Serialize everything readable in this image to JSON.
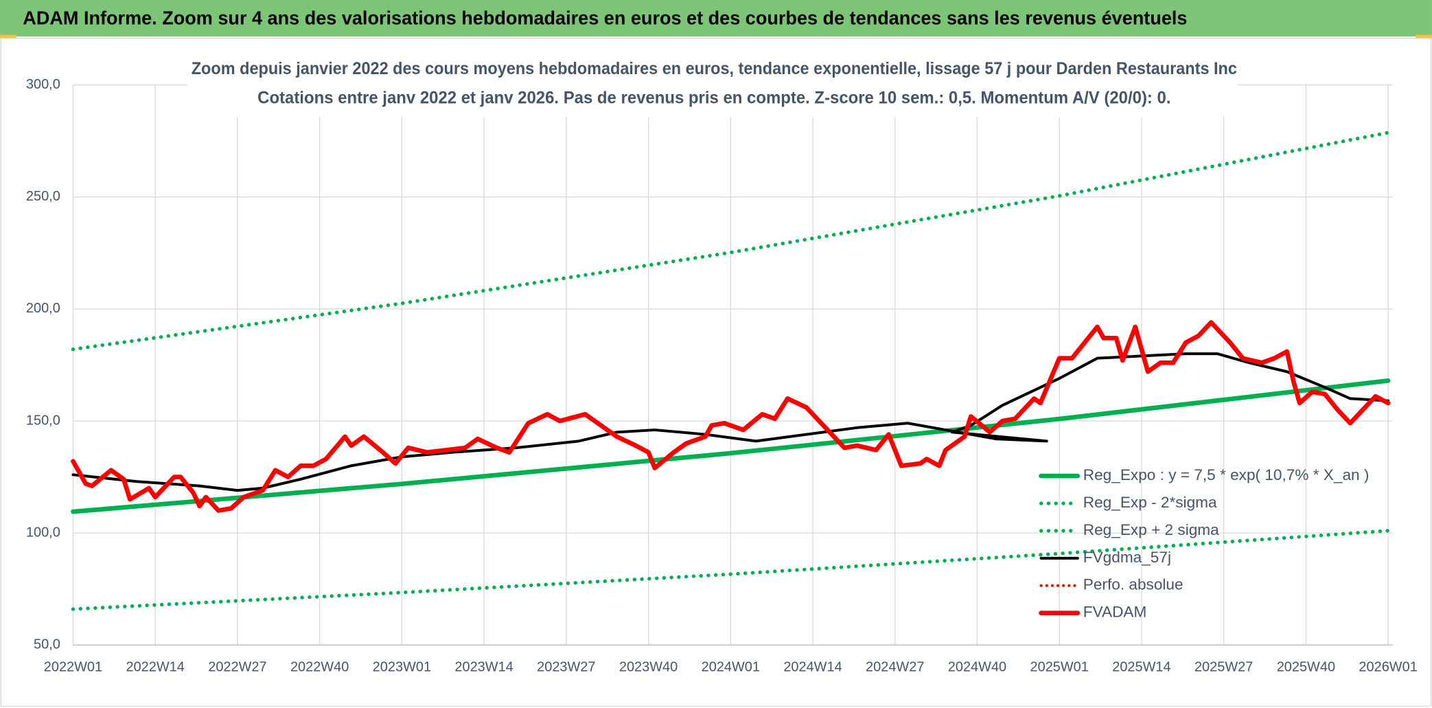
{
  "chart_data": {
    "type": "line",
    "header": "ADAM Informe. Zoom sur 4 ans des valorisations hebdomadaires en euros et des courbes de tendances sans les revenus éventuels",
    "title": "Zoom depuis janvier 2022 des cours moyens hebdomadaires en euros, tendance exponentielle, lissage 57 j pour Darden Restaurants Inc",
    "subtitle": "Cotations entre janv 2022 et janv 2026. Pas de revenus pris en compte. Z-score 10 sem.: 0,5. Momentum A/V (20/0): 0.",
    "xlim": [
      0,
      208
    ],
    "xticks": [
      {
        "value": 0,
        "label": "2022W01"
      },
      {
        "value": 13,
        "label": "2022W14"
      },
      {
        "value": 26,
        "label": "2022W27"
      },
      {
        "value": 39,
        "label": "2022W40"
      },
      {
        "value": 52,
        "label": "2023W01"
      },
      {
        "value": 65,
        "label": "2023W14"
      },
      {
        "value": 78,
        "label": "2023W27"
      },
      {
        "value": 91,
        "label": "2023W40"
      },
      {
        "value": 104,
        "label": "2024W01"
      },
      {
        "value": 117,
        "label": "2024W14"
      },
      {
        "value": 130,
        "label": "2024W27"
      },
      {
        "value": 143,
        "label": "2024W40"
      },
      {
        "value": 156,
        "label": "2025W01"
      },
      {
        "value": 169,
        "label": "2025W14"
      },
      {
        "value": 182,
        "label": "2025W27"
      },
      {
        "value": 195,
        "label": "2025W40"
      },
      {
        "value": 208,
        "label": "2026W01"
      }
    ],
    "ylim": [
      50,
      300
    ],
    "yticks": [
      {
        "value": 50,
        "label": "50,0"
      },
      {
        "value": 100,
        "label": "100,0"
      },
      {
        "value": 150,
        "label": "150,0"
      },
      {
        "value": 200,
        "label": "200,0"
      },
      {
        "value": 250,
        "label": "250,0"
      },
      {
        "value": 300,
        "label": "300,0"
      }
    ],
    "grid": true,
    "series": [
      {
        "name": "Reg_Expo : y = 7,5 * exp( 10,7% *  X_an )",
        "color": "#00b050",
        "width": 5,
        "dash": "solid",
        "x": [
          0,
          52,
          104,
          156,
          208
        ],
        "values": [
          109.5,
          121.9,
          135.6,
          150.9,
          168
        ]
      },
      {
        "name": "Reg_Exp - 2*sigma",
        "color": "#00b050",
        "width": 4,
        "dash": "dotted",
        "x": [
          0,
          52,
          104,
          156,
          208
        ],
        "values": [
          66,
          73.4,
          81.6,
          90.8,
          101
        ]
      },
      {
        "name": "Reg_Exp + 2 sigma",
        "color": "#00b050",
        "width": 4,
        "dash": "dotted",
        "x": [
          0,
          52,
          104,
          156,
          208
        ],
        "values": [
          182,
          202.5,
          225.2,
          250.5,
          278.7
        ]
      },
      {
        "name": "FVgdma_57j",
        "color": "#000000",
        "width": 3,
        "dash": "solid",
        "x": [
          0,
          10,
          20,
          26,
          30,
          36,
          44,
          52,
          60,
          70,
          80,
          86,
          92,
          100,
          108,
          116,
          124,
          132,
          138,
          146,
          154,
          139,
          142,
          147,
          156,
          162,
          169,
          176,
          181,
          186,
          192,
          198,
          202,
          208
        ],
        "values": [
          126,
          123,
          121,
          119,
          120,
          124,
          130,
          134,
          136,
          138,
          141,
          145,
          146,
          144,
          141,
          144,
          147,
          149,
          146,
          142,
          141,
          145,
          148,
          157,
          169,
          178,
          179,
          180,
          180,
          176,
          172,
          165,
          160,
          159
        ]
      },
      {
        "name": "Perfo. absolue",
        "color": "#ff0000",
        "width": 3,
        "dash": "dotted",
        "x": [],
        "values": []
      },
      {
        "name": "FVADAM",
        "color": "#ff0000",
        "width": 5,
        "dash": "solid",
        "x": [
          0,
          2,
          3,
          6,
          8,
          9,
          12,
          13,
          16,
          17,
          19,
          20,
          21,
          23,
          25,
          27,
          30,
          32,
          34,
          36,
          38,
          40,
          43,
          44,
          46,
          49,
          51,
          53,
          56,
          59,
          62,
          64,
          67,
          69,
          72,
          75,
          77,
          81,
          84,
          86,
          89,
          91,
          92,
          95,
          97,
          100,
          101,
          103,
          106,
          109,
          111,
          113,
          116,
          118,
          120,
          122,
          124,
          127,
          129,
          131,
          134,
          135,
          137,
          138,
          141,
          142,
          145,
          147,
          149,
          152,
          153,
          156,
          158,
          162,
          163,
          165,
          166,
          168,
          170,
          172,
          174,
          176,
          178,
          180,
          183,
          185,
          188,
          190,
          192,
          193,
          194,
          196,
          198,
          200,
          202,
          204,
          206,
          208
        ],
        "values": [
          132,
          122,
          121,
          128,
          124,
          115,
          120,
          116,
          125,
          125,
          118,
          112,
          116,
          110,
          111,
          116,
          119,
          128,
          125,
          130,
          130,
          133,
          143,
          139,
          143,
          136,
          131,
          138,
          136,
          137,
          138,
          142,
          138,
          136,
          149,
          153,
          150,
          153,
          147,
          143,
          139,
          136,
          129,
          136,
          140,
          143,
          148,
          149,
          146,
          153,
          151,
          160,
          156,
          150,
          144,
          138,
          139,
          137,
          144,
          130,
          131,
          133,
          130,
          137,
          143,
          152,
          145,
          150,
          151,
          160,
          158,
          178,
          178,
          192,
          187,
          187,
          177,
          192,
          172,
          176,
          176,
          185,
          188,
          194,
          185,
          178,
          176,
          178,
          181,
          168,
          158,
          163,
          162,
          155,
          149,
          155,
          161,
          158
        ]
      }
    ]
  }
}
